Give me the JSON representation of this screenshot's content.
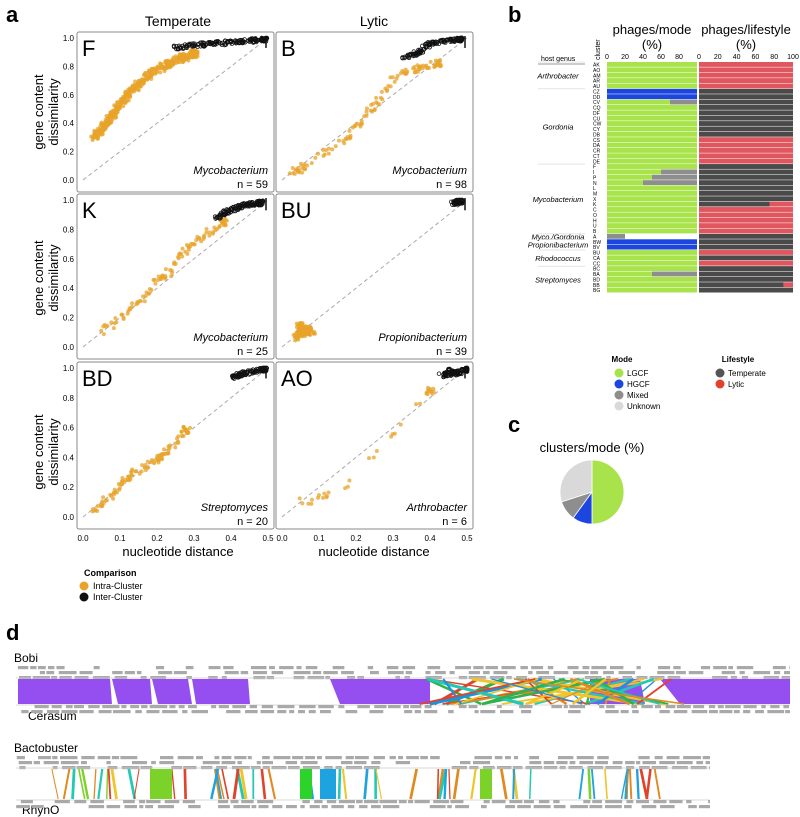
{
  "panel_letters": {
    "a": "a",
    "b": "b",
    "c": "c",
    "d": "d"
  },
  "panel_a": {
    "col_titles": [
      "Temperate",
      "Lytic"
    ],
    "y_label_1": "gene content",
    "y_label_2": "dissimilarity",
    "x_label": "nucleotide distance",
    "x_ticks": [
      "0.0",
      "0.1",
      "0.2",
      "0.3",
      "0.4",
      "0.5"
    ],
    "y_ticks": [
      "0.0",
      "0.2",
      "0.4",
      "0.6",
      "0.8",
      "1.0"
    ],
    "legend_title": "Comparison",
    "legend_items": [
      {
        "label": "Intra-Cluster",
        "color": "#e8a32a"
      },
      {
        "label": "Inter-Cluster",
        "color": "#111111"
      }
    ]
  },
  "chart_data": [
    {
      "type": "scatter",
      "panel": "F",
      "host": "Mycobacterium",
      "n_label": "n = 59",
      "xlim": [
        0,
        0.5
      ],
      "ylim": [
        0,
        1
      ],
      "intra": [
        [
          0.03,
          0.3
        ],
        [
          0.05,
          0.35
        ],
        [
          0.07,
          0.42
        ],
        [
          0.09,
          0.5
        ],
        [
          0.12,
          0.6
        ],
        [
          0.15,
          0.68
        ],
        [
          0.19,
          0.76
        ],
        [
          0.23,
          0.82
        ],
        [
          0.27,
          0.86
        ],
        [
          0.3,
          0.89
        ]
      ],
      "inter": [
        [
          0.25,
          0.93
        ],
        [
          0.3,
          0.95
        ],
        [
          0.35,
          0.96
        ],
        [
          0.4,
          0.97
        ],
        [
          0.45,
          0.98
        ],
        [
          0.49,
          0.99
        ]
      ]
    },
    {
      "type": "scatter",
      "panel": "B",
      "host": "Mycobacterium",
      "n_label": "n = 98",
      "xlim": [
        0,
        0.5
      ],
      "ylim": [
        0,
        1
      ],
      "intra": [
        [
          0.02,
          0.05
        ],
        [
          0.05,
          0.08
        ],
        [
          0.12,
          0.2
        ],
        [
          0.18,
          0.3
        ],
        [
          0.22,
          0.45
        ],
        [
          0.26,
          0.55
        ],
        [
          0.3,
          0.72
        ],
        [
          0.35,
          0.77
        ],
        [
          0.38,
          0.8
        ],
        [
          0.42,
          0.82
        ]
      ],
      "inter": [
        [
          0.33,
          0.86
        ],
        [
          0.37,
          0.9
        ],
        [
          0.4,
          0.96
        ],
        [
          0.44,
          0.98
        ],
        [
          0.48,
          0.99
        ]
      ]
    },
    {
      "type": "scatter",
      "panel": "K",
      "host": "Mycobacterium",
      "n_label": "n = 25",
      "xlim": [
        0,
        0.5
      ],
      "ylim": [
        0,
        1
      ],
      "intra": [
        [
          0.05,
          0.1
        ],
        [
          0.1,
          0.2
        ],
        [
          0.15,
          0.3
        ],
        [
          0.2,
          0.45
        ],
        [
          0.23,
          0.5
        ],
        [
          0.27,
          0.65
        ],
        [
          0.3,
          0.72
        ],
        [
          0.34,
          0.78
        ],
        [
          0.38,
          0.85
        ]
      ],
      "inter": [
        [
          0.36,
          0.88
        ],
        [
          0.39,
          0.92
        ],
        [
          0.42,
          0.95
        ],
        [
          0.45,
          0.97
        ],
        [
          0.48,
          0.98
        ]
      ]
    },
    {
      "type": "scatter",
      "panel": "BU",
      "host": "Propionibacterium",
      "n_label": "n = 39",
      "xlim": [
        0,
        0.5
      ],
      "ylim": [
        0,
        1
      ],
      "intra": [
        [
          0.04,
          0.06
        ],
        [
          0.05,
          0.08
        ],
        [
          0.06,
          0.1
        ],
        [
          0.07,
          0.12
        ],
        [
          0.08,
          0.1
        ],
        [
          0.05,
          0.14
        ]
      ],
      "inter": [
        [
          0.46,
          0.98
        ],
        [
          0.48,
          0.99
        ]
      ]
    },
    {
      "type": "scatter",
      "panel": "BD",
      "host": "Streptomyces",
      "n_label": "n = 20",
      "xlim": [
        0,
        0.5
      ],
      "ylim": [
        0,
        1
      ],
      "intra": [
        [
          0.03,
          0.05
        ],
        [
          0.06,
          0.1
        ],
        [
          0.1,
          0.2
        ],
        [
          0.12,
          0.27
        ],
        [
          0.16,
          0.32
        ],
        [
          0.2,
          0.38
        ],
        [
          0.22,
          0.42
        ],
        [
          0.25,
          0.5
        ],
        [
          0.28,
          0.58
        ]
      ],
      "inter": [
        [
          0.4,
          0.94
        ],
        [
          0.43,
          0.96
        ],
        [
          0.46,
          0.98
        ],
        [
          0.49,
          0.99
        ]
      ]
    },
    {
      "type": "scatter",
      "panel": "AO",
      "host": "Arthrobacter",
      "n_label": "n = 6",
      "xlim": [
        0,
        0.5
      ],
      "ylim": [
        0,
        1
      ],
      "intra": [
        [
          0.05,
          0.1
        ],
        [
          0.15,
          0.15
        ],
        [
          0.4,
          0.85
        ]
      ],
      "inter": [
        [
          0.45,
          0.98
        ],
        [
          0.48,
          0.97
        ],
        [
          0.43,
          0.95
        ],
        [
          0.5,
          0.99
        ]
      ]
    },
    {
      "type": "bar",
      "panel": "b-mode",
      "title_1": "phages/mode",
      "title_2": "(%)",
      "xlim": [
        0,
        100
      ],
      "x_ticks": [
        "0",
        "20",
        "40",
        "60",
        "80"
      ],
      "categories": [
        "AK",
        "AO",
        "AM",
        "AR",
        "AU",
        "CZ",
        "DD",
        "CV",
        "CQ",
        "DF",
        "CU",
        "CW",
        "CY",
        "DB",
        "CS",
        "DA",
        "CR",
        "CT",
        "DE",
        "F",
        "I",
        "P",
        "N",
        "L",
        "M",
        "X",
        "K",
        "C",
        "O",
        "H",
        "U",
        "B",
        "A",
        "BW",
        "BV",
        "BU",
        "CA",
        "CC",
        "BC",
        "BA",
        "BD",
        "BB",
        "BG"
      ],
      "series": [
        {
          "name": "LGCF",
          "values": [
            100,
            100,
            100,
            100,
            100,
            0,
            0,
            70,
            100,
            100,
            100,
            100,
            100,
            100,
            100,
            100,
            100,
            100,
            100,
            100,
            60,
            50,
            40,
            100,
            100,
            100,
            100,
            100,
            100,
            100,
            100,
            100,
            0,
            0,
            0,
            100,
            100,
            100,
            100,
            50,
            100,
            100,
            100
          ]
        },
        {
          "name": "HGCF",
          "values": [
            0,
            0,
            0,
            0,
            0,
            100,
            100,
            0,
            0,
            0,
            0,
            0,
            0,
            0,
            0,
            0,
            0,
            0,
            0,
            0,
            0,
            0,
            0,
            0,
            0,
            0,
            0,
            0,
            0,
            0,
            0,
            0,
            0,
            100,
            100,
            0,
            0,
            0,
            0,
            0,
            0,
            0,
            0
          ]
        },
        {
          "name": "Mixed",
          "values": [
            0,
            0,
            0,
            0,
            0,
            0,
            0,
            30,
            0,
            0,
            0,
            0,
            0,
            0,
            0,
            0,
            0,
            0,
            0,
            0,
            40,
            50,
            60,
            0,
            0,
            0,
            0,
            0,
            0,
            0,
            0,
            0,
            20,
            0,
            0,
            0,
            0,
            0,
            0,
            50,
            0,
            0,
            0
          ]
        }
      ],
      "host_genus_header": "host genus",
      "cluster_header": "cluster",
      "host_groups": [
        {
          "label": "Arthrobacter",
          "start": 0,
          "end": 4
        },
        {
          "label": "Gordonia",
          "start": 5,
          "end": 18
        },
        {
          "label": "Mycobacterium",
          "start": 19,
          "end": 31
        },
        {
          "label": "Myco./Gordonia",
          "start": 32,
          "end": 32
        },
        {
          "label": "Propionibacterium",
          "start": 33,
          "end": 34
        },
        {
          "label": "Rhodococcus",
          "start": 35,
          "end": 37
        },
        {
          "label": "Streptomyces",
          "start": 38,
          "end": 42
        }
      ]
    },
    {
      "type": "bar",
      "panel": "b-lifestyle",
      "title_1": "phages/lifestyle",
      "title_2": "(%)",
      "xlim": [
        0,
        100
      ],
      "x_ticks": [
        "0",
        "20",
        "40",
        "60",
        "80",
        "100"
      ],
      "series": [
        {
          "name": "Temperate",
          "values": [
            0,
            0,
            0,
            0,
            0,
            100,
            100,
            100,
            100,
            100,
            100,
            100,
            100,
            100,
            0,
            0,
            0,
            0,
            0,
            100,
            100,
            100,
            100,
            100,
            100,
            100,
            75,
            0,
            0,
            0,
            0,
            0,
            100,
            100,
            100,
            0,
            100,
            0,
            100,
            100,
            100,
            90,
            100
          ]
        },
        {
          "name": "Lytic",
          "values": [
            100,
            100,
            100,
            100,
            100,
            0,
            0,
            0,
            0,
            0,
            0,
            0,
            0,
            0,
            100,
            100,
            100,
            100,
            100,
            0,
            0,
            0,
            0,
            0,
            0,
            0,
            25,
            100,
            100,
            100,
            100,
            100,
            0,
            0,
            0,
            100,
            0,
            100,
            0,
            0,
            0,
            10,
            0
          ]
        }
      ]
    },
    {
      "type": "pie",
      "panel": "c",
      "title": "clusters/mode (%)",
      "categories": [
        "LGCF",
        "HGCF",
        "Mixed",
        "Unknown"
      ],
      "values": [
        50,
        10,
        10,
        30
      ]
    }
  ],
  "legend_b_mode": {
    "title": "Mode",
    "items": [
      {
        "label": "LGCF",
        "color": "#a8e34b"
      },
      {
        "label": "HGCF",
        "color": "#1d46e0"
      },
      {
        "label": "Mixed",
        "color": "#8e8e8e"
      },
      {
        "label": "Unknown",
        "color": "#d9d9d9"
      }
    ]
  },
  "legend_b_lifestyle": {
    "title": "Lifestyle",
    "items": [
      {
        "label": "Temperate",
        "color": "#555555"
      },
      {
        "label": "Lytic",
        "color": "#e0432a"
      }
    ]
  },
  "panel_d": {
    "genomes": [
      "Bobi",
      "Cerasum",
      "Bactobuster",
      "RhynO"
    ]
  },
  "colors": {
    "lgcf": "#a8e34b",
    "hgcf": "#1d46e0",
    "mixed": "#8e8e8e",
    "unknown": "#d9d9d9",
    "temperate": "#4a4a4a",
    "lytic": "#e0565e",
    "intra": "#e8a32a",
    "inter": "#111111",
    "purple": "#8a3cf0"
  }
}
